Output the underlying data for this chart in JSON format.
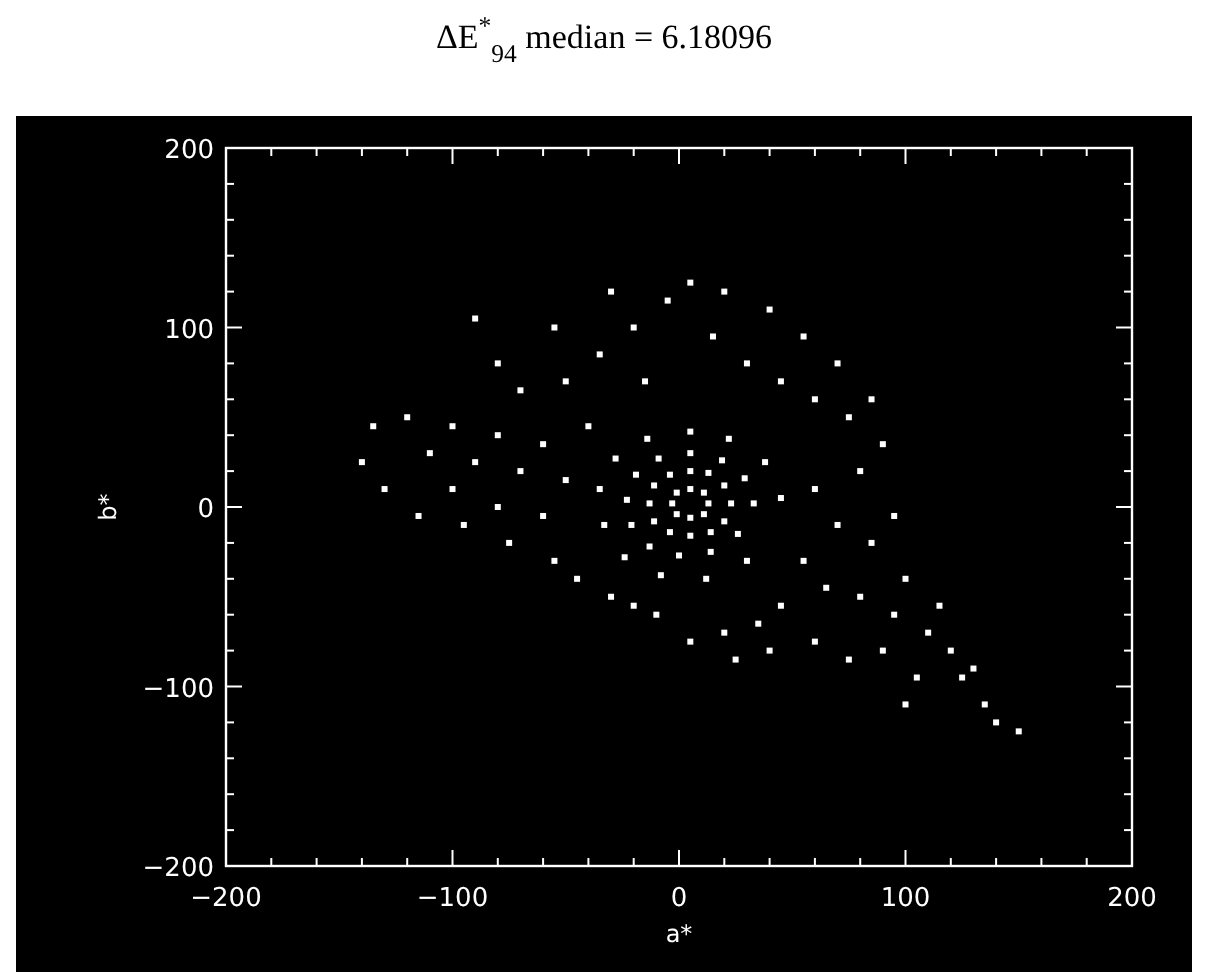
{
  "chart_data": {
    "type": "scatter",
    "title": "ΔE$^{*}$$_{94}$ median = 6.18096",
    "xlabel": "a*",
    "ylabel": "b*",
    "marker": "square",
    "xlim": [
      -200,
      200
    ],
    "ylim": [
      -200,
      200
    ],
    "xticks": [
      -200,
      {
        "value": -180,
        "label": null
      },
      {
        "value": -160,
        "label": null
      },
      {
        "value": -140,
        "label": null
      },
      {
        "value": -120,
        "label": null
      },
      -100,
      {
        "value": -80,
        "label": null
      },
      {
        "value": -60,
        "label": null
      },
      {
        "value": -40,
        "label": null
      },
      {
        "value": -20,
        "label": null
      },
      0,
      {
        "value": 20,
        "label": null
      },
      {
        "value": 40,
        "label": null
      },
      {
        "value": 60,
        "label": null
      },
      {
        "value": 80,
        "label": null
      },
      100,
      {
        "value": 120,
        "label": null
      },
      {
        "value": 140,
        "label": null
      },
      {
        "value": 160,
        "label": null
      },
      {
        "value": 180,
        "label": null
      },
      200
    ],
    "yticks": [
      -200,
      {
        "value": -180,
        "label": null
      },
      {
        "value": -160,
        "label": null
      },
      {
        "value": -140,
        "label": null
      },
      {
        "value": -120,
        "label": null
      },
      -100,
      {
        "value": -80,
        "label": null
      },
      {
        "value": -60,
        "label": null
      },
      {
        "value": -40,
        "label": null
      },
      {
        "value": -20,
        "label": null
      },
      0,
      {
        "value": 20,
        "label": null
      },
      {
        "value": 40,
        "label": null
      },
      {
        "value": 60,
        "label": null
      },
      {
        "value": 80,
        "label": null
      },
      100,
      {
        "value": 120,
        "label": null
      },
      {
        "value": 140,
        "label": null
      },
      {
        "value": 160,
        "label": null
      },
      {
        "value": 180,
        "label": null
      },
      200
    ],
    "series": [
      {
        "color": "#ffffff",
        "x": [
          13,
          11,
          5,
          -1,
          -3,
          -1,
          5,
          11,
          23,
          20,
          13,
          5,
          -4,
          -11,
          -13,
          -11,
          -4,
          5,
          14,
          20,
          33,
          29,
          19,
          5,
          -9,
          -19,
          -23,
          -21,
          -13,
          0,
          14,
          26,
          45,
          38,
          22,
          5,
          -14,
          -28,
          -35,
          -33,
          -24,
          -8,
          12,
          30,
          -140,
          -135,
          -130,
          -120,
          -115,
          -110,
          -100,
          -100,
          -95,
          -90,
          -80,
          -80,
          -75,
          -70,
          -60,
          -60,
          -55,
          -50,
          -45,
          -40,
          -90,
          -80,
          -70,
          -55,
          -50,
          -35,
          -30,
          -20,
          -15,
          -5,
          5,
          15,
          20,
          30,
          40,
          45,
          55,
          60,
          70,
          75,
          85,
          90,
          60,
          70,
          80,
          85,
          95,
          55,
          65,
          80,
          95,
          100,
          110,
          115,
          120,
          125,
          130,
          135,
          140,
          150,
          45,
          35,
          20,
          5,
          25,
          40,
          60,
          75,
          90,
          105,
          -20,
          -10,
          -30,
          100
        ],
        "values": [
          2,
          8,
          10,
          8,
          2,
          -4,
          -6,
          -4,
          2,
          12,
          19,
          20,
          18,
          12,
          2,
          -8,
          -14,
          -16,
          -14,
          -8,
          2,
          16,
          26,
          30,
          27,
          18,
          4,
          -10,
          -22,
          -27,
          -25,
          -15,
          5,
          25,
          38,
          42,
          38,
          27,
          10,
          -10,
          -28,
          -38,
          -40,
          -30,
          25,
          45,
          10,
          50,
          -5,
          30,
          45,
          10,
          -10,
          25,
          40,
          0,
          -20,
          20,
          35,
          -5,
          -30,
          15,
          -40,
          45,
          105,
          80,
          65,
          100,
          70,
          85,
          120,
          100,
          70,
          115,
          125,
          95,
          120,
          80,
          110,
          70,
          95,
          60,
          80,
          50,
          60,
          35,
          10,
          -10,
          20,
          -20,
          -5,
          -30,
          -45,
          -50,
          -60,
          -40,
          -70,
          -55,
          -80,
          -95,
          -90,
          -110,
          -120,
          -125,
          -55,
          -65,
          -70,
          -75,
          -85,
          -80,
          -75,
          -85,
          -80,
          -95,
          -55,
          -60,
          -50,
          -110
        ]
      }
    ]
  }
}
